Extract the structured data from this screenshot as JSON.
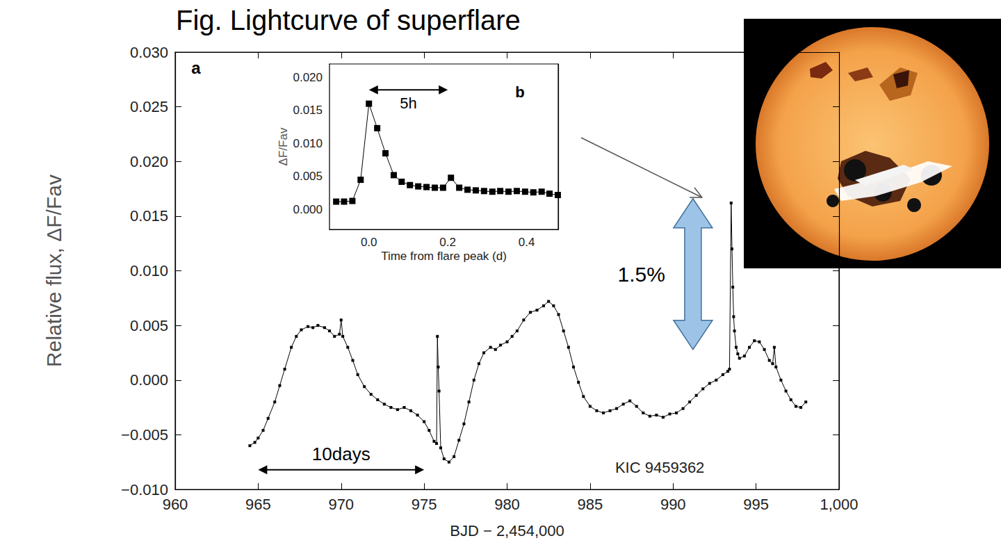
{
  "chart_data": [
    {
      "type": "line",
      "title": "Fig. Lightcurve of superflare",
      "panel": "a",
      "x_label": "BJD − 2,454,000",
      "y_label": "Relative flux, ΔF/Fav",
      "color": "#000000",
      "marker": "square",
      "line_style": "solid",
      "grid": false,
      "xlim": [
        960,
        1000
      ],
      "xticks": [
        960,
        965,
        970,
        975,
        980,
        985,
        990,
        995,
        {
          "value": 1000,
          "label": "1,000"
        }
      ],
      "ylim": [
        -0.01,
        0.03
      ],
      "yticks": [
        {
          "value": -0.01,
          "label": "−0.010"
        },
        {
          "value": -0.005,
          "label": "−0.005"
        },
        {
          "value": 0,
          "label": "0.000"
        },
        {
          "value": 0.005,
          "label": "0.005"
        },
        {
          "value": 0.01,
          "label": "0.010"
        },
        {
          "value": 0.015,
          "label": "0.015"
        },
        {
          "value": 0.02,
          "label": "0.020"
        },
        {
          "value": 0.025,
          "label": "0.025"
        },
        {
          "value": 0.03,
          "label": "0.030"
        }
      ],
      "x": [
        964.5,
        964.8,
        965.0,
        965.3,
        965.6,
        966.0,
        966.3,
        966.6,
        967.0,
        967.3,
        967.6,
        968.0,
        968.3,
        968.6,
        969.0,
        969.3,
        969.6,
        969.9,
        970.0,
        970.1,
        970.4,
        970.7,
        971.0,
        971.4,
        971.8,
        972.2,
        972.6,
        973.0,
        973.4,
        973.8,
        974.2,
        974.6,
        975.0,
        975.3,
        975.6,
        975.75,
        975.8,
        975.85,
        975.9,
        976.0,
        976.2,
        976.5,
        976.8,
        977.1,
        977.4,
        977.7,
        978.0,
        978.3,
        978.6,
        979.0,
        979.3,
        979.6,
        980.0,
        980.3,
        980.6,
        981.0,
        981.4,
        981.8,
        982.2,
        982.5,
        982.8,
        983.1,
        983.4,
        983.7,
        984.0,
        984.3,
        984.6,
        985.0,
        985.4,
        985.8,
        986.2,
        986.6,
        987.0,
        987.4,
        987.8,
        988.2,
        988.6,
        989.0,
        989.4,
        989.8,
        990.2,
        990.6,
        991.0,
        991.4,
        991.8,
        992.2,
        992.6,
        993.0,
        993.3,
        993.4,
        993.5,
        993.55,
        993.6,
        993.65,
        993.7,
        993.8,
        993.9,
        994.0,
        994.3,
        994.6,
        994.9,
        995.2,
        995.5,
        995.8,
        996.0,
        996.1,
        996.2,
        996.5,
        996.8,
        997.1,
        997.4,
        997.7,
        998.0
      ],
      "values": [
        -0.006,
        -0.0057,
        -0.0053,
        -0.0046,
        -0.0035,
        -0.002,
        -0.0005,
        0.001,
        0.003,
        0.004,
        0.0046,
        0.0049,
        0.0048,
        0.005,
        0.0048,
        0.0045,
        0.004,
        0.0042,
        0.0055,
        0.004,
        0.003,
        0.0018,
        0.0005,
        -0.0006,
        -0.0013,
        -0.0018,
        -0.0022,
        -0.0025,
        -0.0027,
        -0.0025,
        -0.0028,
        -0.0032,
        -0.0038,
        -0.0046,
        -0.0056,
        -0.0058,
        0.004,
        0.0012,
        -0.001,
        -0.0062,
        -0.0072,
        -0.0075,
        -0.007,
        -0.0055,
        -0.004,
        -0.002,
        0.0,
        0.0015,
        0.0025,
        0.003,
        0.0028,
        0.0032,
        0.0035,
        0.004,
        0.0045,
        0.0055,
        0.0062,
        0.0064,
        0.0068,
        0.0072,
        0.0068,
        0.006,
        0.0045,
        0.003,
        0.0012,
        -0.0002,
        -0.0015,
        -0.0024,
        -0.0028,
        -0.003,
        -0.0028,
        -0.0026,
        -0.0022,
        -0.0019,
        -0.0024,
        -0.003,
        -0.0033,
        -0.0032,
        -0.0034,
        -0.0031,
        -0.003,
        -0.0026,
        -0.002,
        -0.0014,
        -0.0008,
        -0.0003,
        0.0,
        0.0005,
        0.0008,
        0.001,
        0.0162,
        0.012,
        0.0085,
        0.0058,
        0.0045,
        0.003,
        0.0024,
        0.002,
        0.0022,
        0.003,
        0.0036,
        0.0035,
        0.0028,
        0.0018,
        0.0015,
        0.003,
        0.0012,
        0.0,
        -0.001,
        -0.0018,
        -0.0024,
        -0.0025,
        -0.002
      ],
      "annotations": [
        {
          "text": "10days",
          "x": [
            965,
            975
          ],
          "y": -0.0082
        },
        {
          "text": "1.5%",
          "x": 991.2,
          "y": [
            0.0028,
            0.0166
          ]
        },
        {
          "text": "KIC 9459362",
          "x": 989.2,
          "y": -0.008
        }
      ]
    },
    {
      "type": "line",
      "panel": "b",
      "x_label": "Time from flare peak (d)",
      "y_label": "ΔF/Fav",
      "color": "#000000",
      "marker": "square",
      "line_style": "solid",
      "grid": false,
      "xlim": [
        -0.1,
        0.48
      ],
      "xticks": [
        {
          "value": 0,
          "label": "0.0"
        },
        0.2,
        0.4
      ],
      "ylim": [
        -0.003,
        0.022
      ],
      "yticks": [
        {
          "value": 0,
          "label": "0.000"
        },
        {
          "value": 0.005,
          "label": "0.005"
        },
        {
          "value": 0.01,
          "label": "0.010"
        },
        {
          "value": 0.015,
          "label": "0.015"
        },
        {
          "value": 0.02,
          "label": "0.020"
        }
      ],
      "x": [
        -0.083,
        -0.063,
        -0.042,
        -0.021,
        0.0,
        0.021,
        0.042,
        0.063,
        0.083,
        0.104,
        0.125,
        0.146,
        0.167,
        0.188,
        0.208,
        0.229,
        0.25,
        0.271,
        0.292,
        0.313,
        0.333,
        0.354,
        0.375,
        0.396,
        0.417,
        0.438,
        0.458,
        0.479
      ],
      "values": [
        0.0012,
        0.0012,
        0.0013,
        0.0045,
        0.016,
        0.0123,
        0.0085,
        0.0052,
        0.0042,
        0.0037,
        0.0035,
        0.0034,
        0.0033,
        0.0033,
        0.0048,
        0.0033,
        0.003,
        0.0029,
        0.0028,
        0.0027,
        0.0028,
        0.0027,
        0.0028,
        0.0027,
        0.0026,
        0.0027,
        0.0024,
        0.0022
      ],
      "annotations": [
        {
          "text": "5h",
          "x": [
            0,
            0.2
          ],
          "y": 0.0181
        }
      ]
    }
  ]
}
